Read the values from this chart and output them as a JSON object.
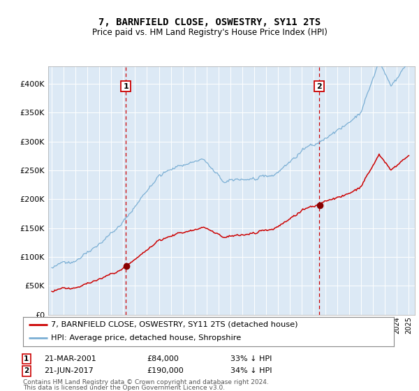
{
  "title": "7, BARNFIELD CLOSE, OSWESTRY, SY11 2TS",
  "subtitle": "Price paid vs. HM Land Registry's House Price Index (HPI)",
  "hpi_label": "HPI: Average price, detached house, Shropshire",
  "property_label": "7, BARNFIELD CLOSE, OSWESTRY, SY11 2TS (detached house)",
  "footnote1": "Contains HM Land Registry data © Crown copyright and database right 2024.",
  "footnote2": "This data is licensed under the Open Government Licence v3.0.",
  "sale1_date": "21-MAR-2001",
  "sale1_price": 84000,
  "sale1_pct": "33% ↓ HPI",
  "sale2_date": "21-JUN-2017",
  "sale2_price": 190000,
  "sale2_pct": "34% ↓ HPI",
  "property_color": "#cc0000",
  "hpi_color": "#7bafd4",
  "background_color": "#dce9f5",
  "sale_marker_color": "#880000",
  "vline_color": "#cc0000",
  "ylim": [
    0,
    430000
  ],
  "yticks": [
    0,
    50000,
    100000,
    150000,
    200000,
    250000,
    300000,
    350000,
    400000
  ],
  "sale1_year": 2001.22,
  "sale2_year": 2017.46
}
